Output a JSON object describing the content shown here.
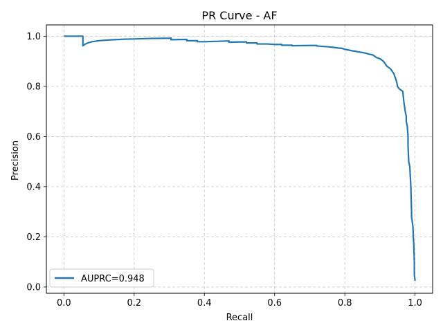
{
  "chart_data": {
    "type": "line",
    "title": "PR Curve - AF",
    "xlabel": "Recall",
    "ylabel": "Precision",
    "xlim": [
      -0.05,
      1.05
    ],
    "ylim": [
      -0.025,
      1.045
    ],
    "xticks": [
      0.0,
      0.2,
      0.4,
      0.6,
      0.8,
      1.0
    ],
    "xtick_labels": [
      "0.0",
      "0.2",
      "0.4",
      "0.6",
      "0.8",
      "1.0"
    ],
    "yticks": [
      0.0,
      0.2,
      0.4,
      0.6,
      0.8,
      1.0
    ],
    "ytick_labels": [
      "0.0",
      "0.2",
      "0.4",
      "0.6",
      "0.8",
      "1.0"
    ],
    "grid": true,
    "legend_position": "lower-left",
    "series": [
      {
        "name": "AUPRC=0.948",
        "color": "#1f77b4",
        "x": [
          0.0,
          0.054,
          0.054,
          0.06,
          0.07,
          0.08,
          0.1,
          0.13,
          0.17,
          0.2,
          0.25,
          0.3,
          0.305,
          0.305,
          0.35,
          0.35,
          0.38,
          0.38,
          0.4,
          0.47,
          0.47,
          0.5,
          0.52,
          0.52,
          0.55,
          0.55,
          0.58,
          0.6,
          0.62,
          0.62,
          0.65,
          0.65,
          0.7,
          0.72,
          0.72,
          0.75,
          0.77,
          0.78,
          0.79,
          0.8,
          0.81,
          0.82,
          0.83,
          0.84,
          0.85,
          0.86,
          0.87,
          0.88,
          0.885,
          0.89,
          0.9,
          0.905,
          0.91,
          0.915,
          0.92,
          0.925,
          0.93,
          0.935,
          0.94,
          0.942,
          0.945,
          0.948,
          0.95,
          0.955,
          0.96,
          0.965,
          0.968,
          0.97,
          0.972,
          0.975,
          0.975,
          0.978,
          0.98,
          0.98,
          0.982,
          0.985,
          0.988,
          0.99,
          0.99,
          0.992,
          0.994,
          0.995,
          0.996,
          0.998,
          0.998,
          1.0
        ],
        "y": [
          1.0,
          1.0,
          0.962,
          0.968,
          0.974,
          0.978,
          0.982,
          0.985,
          0.988,
          0.989,
          0.991,
          0.992,
          0.993,
          0.986,
          0.987,
          0.982,
          0.982,
          0.978,
          0.978,
          0.981,
          0.976,
          0.977,
          0.977,
          0.973,
          0.973,
          0.969,
          0.969,
          0.967,
          0.967,
          0.964,
          0.964,
          0.962,
          0.963,
          0.963,
          0.961,
          0.958,
          0.955,
          0.953,
          0.952,
          0.948,
          0.945,
          0.942,
          0.94,
          0.937,
          0.935,
          0.932,
          0.928,
          0.925,
          0.92,
          0.915,
          0.91,
          0.905,
          0.9,
          0.89,
          0.88,
          0.875,
          0.87,
          0.86,
          0.85,
          0.84,
          0.83,
          0.815,
          0.8,
          0.79,
          0.785,
          0.78,
          0.74,
          0.72,
          0.7,
          0.68,
          0.66,
          0.64,
          0.6,
          0.56,
          0.5,
          0.48,
          0.4,
          0.3,
          0.28,
          0.26,
          0.24,
          0.2,
          0.18,
          0.1,
          0.05,
          0.025
        ]
      }
    ]
  }
}
